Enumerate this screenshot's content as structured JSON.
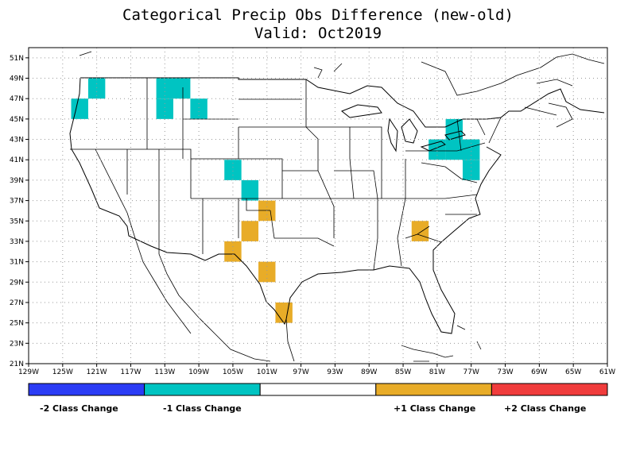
{
  "title": "Categorical Precip Obs Difference (new-old)",
  "subtitle": "Valid: Oct2019",
  "map": {
    "lon_range": [
      -129,
      -61
    ],
    "lat_range": [
      21,
      52
    ],
    "lat_ticks": [
      "51N",
      "49N",
      "47N",
      "45N",
      "43N",
      "41N",
      "39N",
      "37N",
      "35N",
      "33N",
      "31N",
      "29N",
      "27N",
      "25N",
      "23N",
      "21N"
    ],
    "lon_ticks": [
      "129W",
      "125W",
      "121W",
      "117W",
      "113W",
      "109W",
      "105W",
      "101W",
      "97W",
      "93W",
      "89W",
      "85W",
      "81W",
      "77W",
      "73W",
      "69W",
      "65W",
      "61W"
    ],
    "cell_size_deg": 2,
    "cells_minus1": [
      [
        -121,
        48
      ],
      [
        -123,
        46
      ],
      [
        -113,
        48
      ],
      [
        -111,
        48
      ],
      [
        -113,
        46
      ],
      [
        -109,
        46
      ],
      [
        -105,
        40
      ],
      [
        -103,
        38
      ],
      [
        -79,
        44
      ],
      [
        -81,
        42
      ],
      [
        -79,
        42
      ],
      [
        -77,
        42
      ],
      [
        -77,
        40
      ]
    ],
    "cells_plus1": [
      [
        -101,
        36
      ],
      [
        -103,
        34
      ],
      [
        -105,
        32
      ],
      [
        -101,
        30
      ],
      [
        -99,
        26
      ],
      [
        -83,
        34
      ]
    ]
  },
  "legend": {
    "colors": [
      "#2b3cf5",
      "#00c4c2",
      "#ffffff",
      "#e8ac28",
      "#f03c3c"
    ],
    "labels": [
      "-2 Class Change",
      "-1 Class Change",
      "+1 Class Change",
      "+2 Class Change"
    ]
  }
}
